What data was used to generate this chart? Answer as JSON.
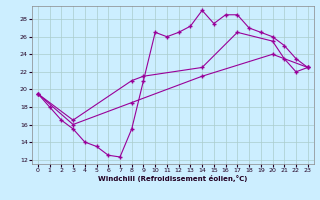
{
  "xlabel": "Windchill (Refroidissement éolien,°C)",
  "background_color": "#cceeff",
  "line_color": "#990099",
  "grid_color": "#aacccc",
  "xlim": [
    -0.5,
    23.5
  ],
  "ylim": [
    11.5,
    29.5
  ],
  "yticks": [
    12,
    14,
    16,
    18,
    20,
    22,
    24,
    26,
    28
  ],
  "xticks": [
    0,
    1,
    2,
    3,
    4,
    5,
    6,
    7,
    8,
    9,
    10,
    11,
    12,
    13,
    14,
    15,
    16,
    17,
    18,
    19,
    20,
    21,
    22,
    23
  ],
  "series1_x": [
    0,
    1,
    2,
    3,
    4,
    5,
    6,
    7,
    8,
    9,
    10,
    11,
    12,
    13,
    14,
    15,
    16,
    17,
    18,
    19,
    20,
    21,
    22,
    23
  ],
  "series1_y": [
    19.5,
    18.0,
    16.5,
    15.5,
    14.0,
    13.5,
    12.5,
    12.3,
    15.5,
    21.0,
    26.5,
    26.0,
    26.5,
    27.2,
    29.0,
    27.5,
    28.5,
    28.5,
    27.0,
    26.5,
    26.0,
    25.0,
    23.5,
    22.5
  ],
  "series2_x": [
    0,
    3,
    8,
    9,
    14,
    17,
    20,
    21,
    22,
    23
  ],
  "series2_y": [
    19.5,
    16.5,
    21.0,
    21.5,
    22.5,
    26.5,
    25.5,
    23.5,
    22.0,
    22.5
  ],
  "series3_x": [
    0,
    3,
    8,
    14,
    20,
    23
  ],
  "series3_y": [
    19.5,
    16.0,
    18.5,
    21.5,
    24.0,
    22.5
  ]
}
